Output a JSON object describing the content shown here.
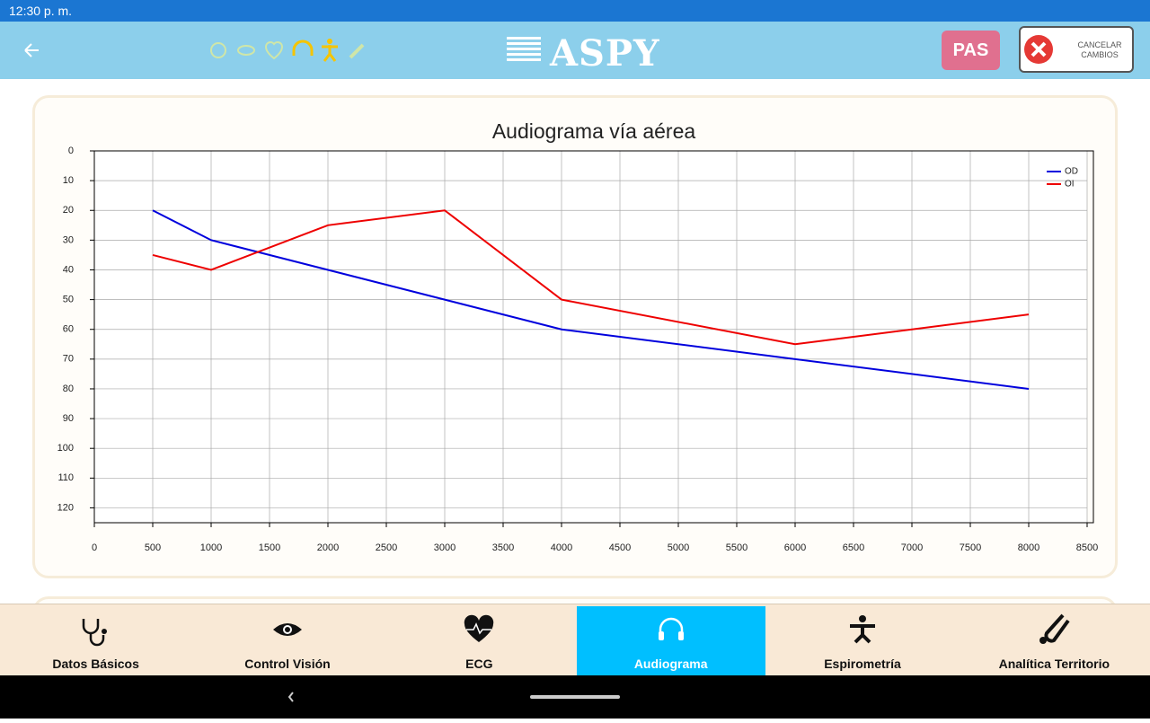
{
  "status_bar": {
    "time": "12:30 p. m."
  },
  "header": {
    "logo": "ASPY",
    "pas_button": "PAS",
    "cancel_button": [
      "CANCELAR",
      "CAMBIOS"
    ]
  },
  "chart_data": {
    "type": "line",
    "title": "Audiograma vía aérea",
    "x": [
      500,
      1000,
      2000,
      3000,
      4000,
      6000,
      8000
    ],
    "series": [
      {
        "name": "OD",
        "color": "#0000dd",
        "values": [
          20,
          30,
          40,
          50,
          60,
          70,
          80
        ]
      },
      {
        "name": "OI",
        "color": "#ee0000",
        "values": [
          35,
          40,
          25,
          20,
          50,
          65,
          55
        ]
      }
    ],
    "xlim": [
      0,
      8500
    ],
    "xticks": [
      0,
      500,
      1000,
      1500,
      2000,
      2500,
      3000,
      3500,
      4000,
      4500,
      5000,
      5500,
      6000,
      6500,
      7000,
      7500,
      8000,
      8500
    ],
    "ylim": [
      0,
      125
    ],
    "yticks": [
      0,
      10,
      20,
      30,
      40,
      50,
      60,
      70,
      80,
      90,
      100,
      110,
      120
    ],
    "y_reversed": true,
    "grid": true,
    "legend": "top-right"
  },
  "tabs": [
    "Datos Básicos",
    "Control Visión",
    "ECG",
    "Audiograma",
    "Espirometría",
    "Analítica Territorio"
  ],
  "active_tab": 3
}
